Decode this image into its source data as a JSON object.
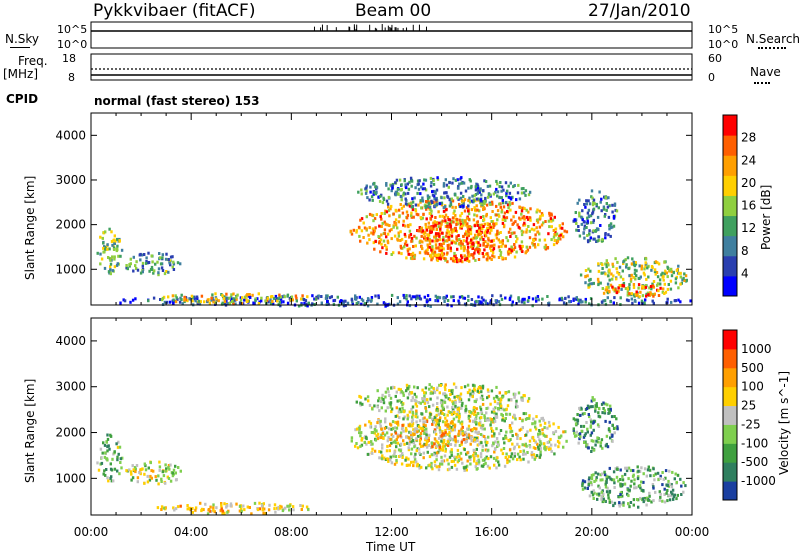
{
  "header": {
    "radar": "Pykkvibaer (fitACF)",
    "beam": "Beam 00",
    "date": "27/Jan/2010"
  },
  "status_panels": {
    "nsky_label": "N.Sky",
    "nsearch_label": "N.Search",
    "nsky_ticks": [
      "10^5",
      "10^0"
    ],
    "nsearch_ticks": [
      "10^5",
      "10^0"
    ],
    "freq_label": "Freq.",
    "freq_unit": "[MHz]",
    "freq_ticks": [
      "18",
      "8"
    ],
    "nave_label": "Nave",
    "nave_ticks": [
      "60",
      "0"
    ],
    "cpid_label": "CPID",
    "cpid_value": "normal (fast stereo) 153"
  },
  "chart_data": [
    {
      "type": "heatmap",
      "name": "power",
      "ylabel": "Slant Range [km]",
      "yticks": [
        "4000",
        "3000",
        "2000",
        "1000"
      ],
      "ylim": [
        200,
        4500
      ],
      "colorbar_label": "Power [dB]",
      "colorbar_ticks": [
        "28",
        "24",
        "20",
        "16",
        "12",
        "8",
        "4"
      ],
      "colors": [
        "#0000ff",
        "#2a3fb0",
        "#3f7f9f",
        "#3fa05f",
        "#8fcf3f",
        "#ffcf00",
        "#ff9f00",
        "#ff5f00",
        "#ff0000"
      ],
      "blobs": [
        {
          "t": [
            0.2,
            1.2
          ],
          "r": [
            900,
            2000
          ],
          "level": 0.45
        },
        {
          "t": [
            1.3,
            3.6
          ],
          "r": [
            900,
            1400
          ],
          "level": 0.35
        },
        {
          "t": [
            10.3,
            19.0
          ],
          "r": [
            1200,
            2600
          ],
          "level": 0.7
        },
        {
          "t": [
            13.0,
            16.0
          ],
          "r": [
            1200,
            2200
          ],
          "level": 0.85
        },
        {
          "t": [
            10.5,
            17.5
          ],
          "r": [
            2400,
            3100
          ],
          "level": 0.3
        },
        {
          "t": [
            19.5,
            23.8
          ],
          "r": [
            400,
            1300
          ],
          "level": 0.5
        },
        {
          "t": [
            20.5,
            23.0
          ],
          "r": [
            400,
            700
          ],
          "level": 0.8
        },
        {
          "t": [
            19.2,
            21.0
          ],
          "r": [
            1600,
            2800
          ],
          "level": 0.3
        },
        {
          "t": [
            0.0,
            24.0
          ],
          "r": [
            200,
            450
          ],
          "level": 0.2
        },
        {
          "t": [
            2.5,
            9.0
          ],
          "r": [
            250,
            500
          ],
          "level": 0.6
        }
      ]
    },
    {
      "type": "heatmap",
      "name": "velocity",
      "ylabel": "Slant Range [km]",
      "yticks": [
        "4000",
        "3000",
        "2000",
        "1000"
      ],
      "ylim": [
        200,
        4500
      ],
      "colorbar_label": "Velocity [m s^-1]",
      "colorbar_ticks": [
        "1000",
        "500",
        "100",
        "25",
        "-25",
        "-100",
        "-500",
        "-1000"
      ],
      "colors": [
        "#1a3fa0",
        "#2f7f5f",
        "#3fa03f",
        "#7fcf4f",
        "#c0c0c0",
        "#ffcf00",
        "#ff9f00",
        "#ff5f00",
        "#ff0000"
      ],
      "xlabel": "Time UT",
      "xticks": [
        "00:00",
        "04:00",
        "08:00",
        "12:00",
        "16:00",
        "20:00",
        "00:00"
      ],
      "blobs": [
        {
          "t": [
            0.2,
            1.2
          ],
          "r": [
            900,
            2000
          ],
          "level": 0.35
        },
        {
          "t": [
            1.3,
            3.6
          ],
          "r": [
            900,
            1400
          ],
          "level": 0.5
        },
        {
          "t": [
            10.3,
            19.0
          ],
          "r": [
            1200,
            2600
          ],
          "level": 0.5
        },
        {
          "t": [
            12.0,
            15.5
          ],
          "r": [
            1700,
            2300
          ],
          "level": 0.65
        },
        {
          "t": [
            10.5,
            17.5
          ],
          "r": [
            2400,
            3100
          ],
          "level": 0.45
        },
        {
          "t": [
            19.5,
            23.8
          ],
          "r": [
            400,
            1300
          ],
          "level": 0.3
        },
        {
          "t": [
            19.2,
            21.0
          ],
          "r": [
            1600,
            2800
          ],
          "level": 0.25
        },
        {
          "t": [
            2.5,
            9.0
          ],
          "r": [
            250,
            500
          ],
          "level": 0.6
        }
      ]
    }
  ]
}
